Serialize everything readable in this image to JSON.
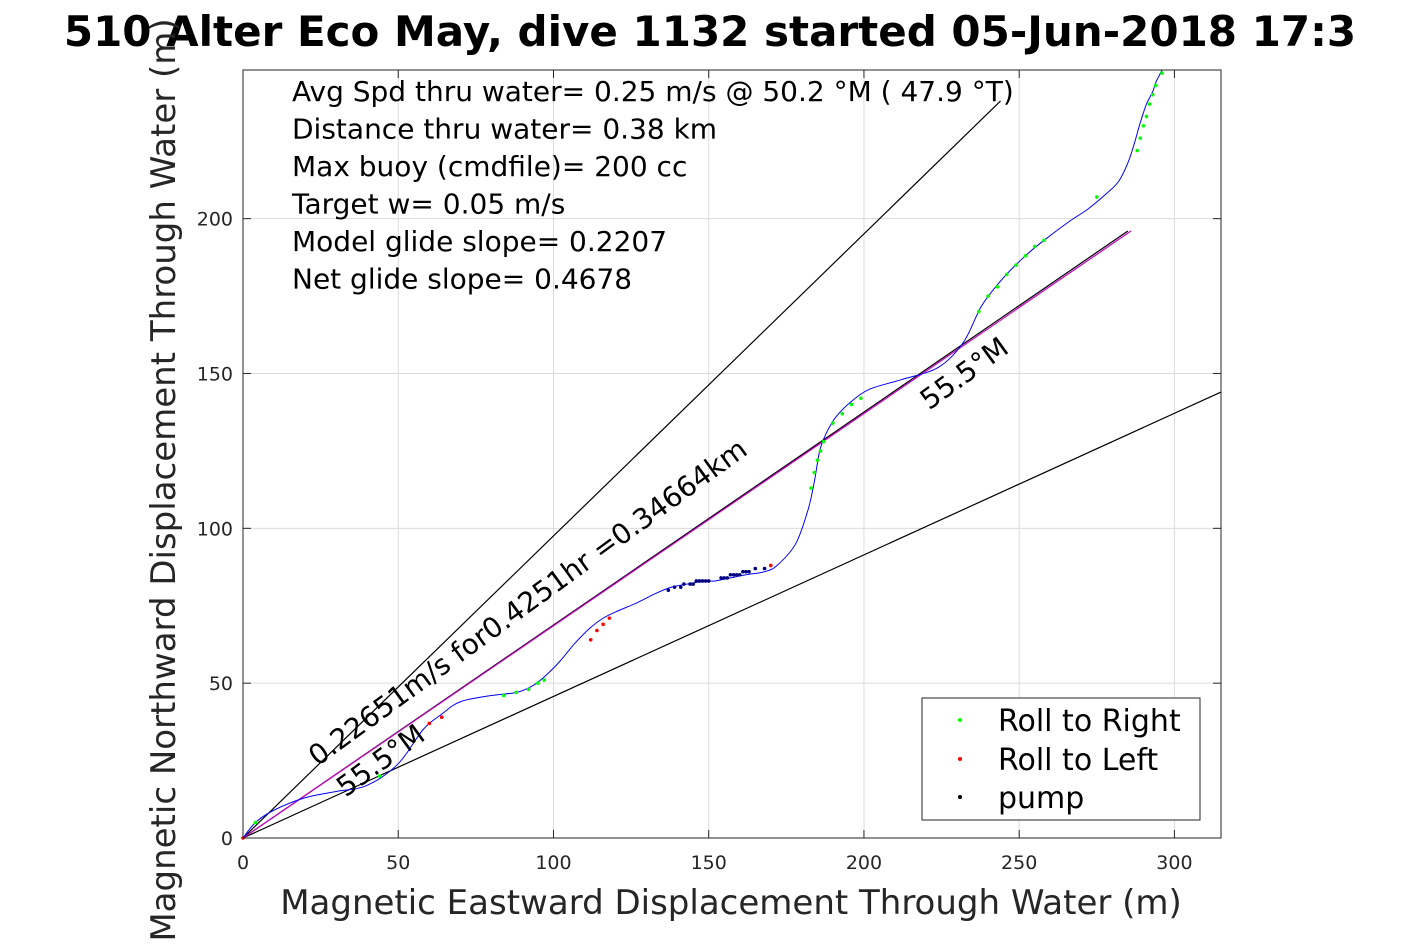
{
  "chart_data": {
    "type": "line",
    "title": "510 Alter Eco May, dive 1132 started 05-Jun-2018 17:3",
    "xlabel": "Magnetic Eastward Displacement Through Water (m)",
    "ylabel": "Magnetic Northward Displacement Through Water (m)",
    "xlim": [
      0,
      315
    ],
    "ylim": [
      0,
      248
    ],
    "xticks": [
      0,
      50,
      100,
      150,
      200,
      250,
      300
    ],
    "yticks": [
      0,
      50,
      100,
      150,
      200
    ],
    "grid": true,
    "legend_position": "bottom-right",
    "info_lines": [
      "Avg Spd thru water=  0.25 m/s @  50.2 °M ( 47.9 °T)",
      "Distance thru water=  0.38 km",
      "Max buoy (cmdfile)= 200 cc",
      "Target w= 0.05 m/s",
      "Model glide slope= 0.2207",
      "Net glide slope= 0.4678"
    ],
    "annotations": [
      {
        "text": "0.22651m/s for0.4251hr =0.34664km",
        "x": 24,
        "y": 23,
        "angle_deg": 36
      },
      {
        "text": "55.5°M",
        "x": 221,
        "y": 138,
        "angle_deg": 36
      },
      {
        "text": "55.5°M",
        "x": 33,
        "y": 13,
        "angle_deg": 36
      }
    ],
    "lines": [
      {
        "role": "cone-upper",
        "color": "#000000",
        "x": [
          0,
          244
        ],
        "y": [
          0,
          238
        ]
      },
      {
        "role": "cone-lower",
        "color": "#000000",
        "x": [
          0,
          315
        ],
        "y": [
          0,
          144
        ]
      },
      {
        "role": "net-heading",
        "color": "#000000",
        "x": [
          0,
          285
        ],
        "y": [
          0,
          196
        ]
      },
      {
        "role": "model-heading",
        "color": "#cc00cc",
        "x": [
          0,
          286
        ],
        "y": [
          0,
          196
        ]
      }
    ],
    "track": {
      "name": "",
      "color": "#0000ff",
      "x": [
        0,
        4,
        10,
        20,
        30,
        40,
        50,
        58,
        64,
        70,
        80,
        88,
        93,
        97,
        102,
        107,
        112,
        116,
        120,
        127,
        133,
        138,
        143,
        149,
        152,
        157,
        162,
        168,
        172,
        178,
        182,
        184,
        185,
        186,
        188,
        191,
        196,
        202,
        212,
        224,
        232,
        238,
        245,
        252,
        258,
        266,
        272,
        278,
        282,
        285,
        287,
        289,
        291,
        293,
        294,
        295,
        296
      ],
      "y": [
        0,
        5,
        9,
        13,
        15,
        17,
        24,
        35,
        40,
        44,
        46,
        47,
        49,
        52,
        57,
        63,
        68,
        71,
        73,
        76,
        79,
        81,
        82,
        83,
        83,
        84,
        85,
        86,
        88,
        95,
        106,
        115,
        121,
        126,
        131,
        136,
        141,
        145,
        148,
        152,
        160,
        172,
        181,
        188,
        193,
        199,
        203,
        208,
        212,
        218,
        224,
        231,
        237,
        241,
        244,
        246,
        248
      ]
    },
    "legend": [
      {
        "label": "Roll to Right",
        "color": "#00ff00"
      },
      {
        "label": "Roll to Left",
        "color": "#ff0000"
      },
      {
        "label": "pump",
        "color": "#000000"
      }
    ],
    "markers": {
      "roll_right": {
        "color": "#00ff00",
        "x": [
          4,
          44,
          84,
          88,
          92,
          95,
          97,
          183,
          184,
          185,
          186,
          187,
          190,
          193,
          196,
          199,
          237,
          240,
          243,
          246,
          249,
          252,
          255,
          258,
          275,
          288,
          289,
          290,
          291,
          292,
          293,
          294,
          296
        ],
        "y": [
          5,
          20,
          46,
          47,
          48,
          50,
          51,
          113,
          118,
          122,
          125,
          128,
          134,
          137,
          140,
          142,
          170,
          175,
          178,
          182,
          185,
          188,
          191,
          193,
          207,
          222,
          226,
          230,
          233,
          237,
          240,
          243,
          247
        ]
      },
      "roll_left": {
        "color": "#ff0000",
        "x": [
          0,
          60,
          64,
          112,
          114,
          116,
          118,
          170
        ],
        "y": [
          0,
          37,
          39,
          64,
          67,
          69,
          71,
          88
        ]
      },
      "pump": {
        "color": "#000080",
        "x": [
          137,
          139,
          141,
          142,
          144,
          145,
          146,
          147,
          148,
          149,
          150,
          154,
          155,
          156,
          157,
          158,
          159,
          160,
          161,
          162,
          163,
          165,
          168
        ],
        "y": [
          80,
          81,
          81,
          82,
          82,
          82,
          83,
          83,
          83,
          83,
          83,
          84,
          84,
          84,
          85,
          85,
          85,
          85,
          86,
          86,
          86,
          87,
          87
        ]
      }
    }
  }
}
